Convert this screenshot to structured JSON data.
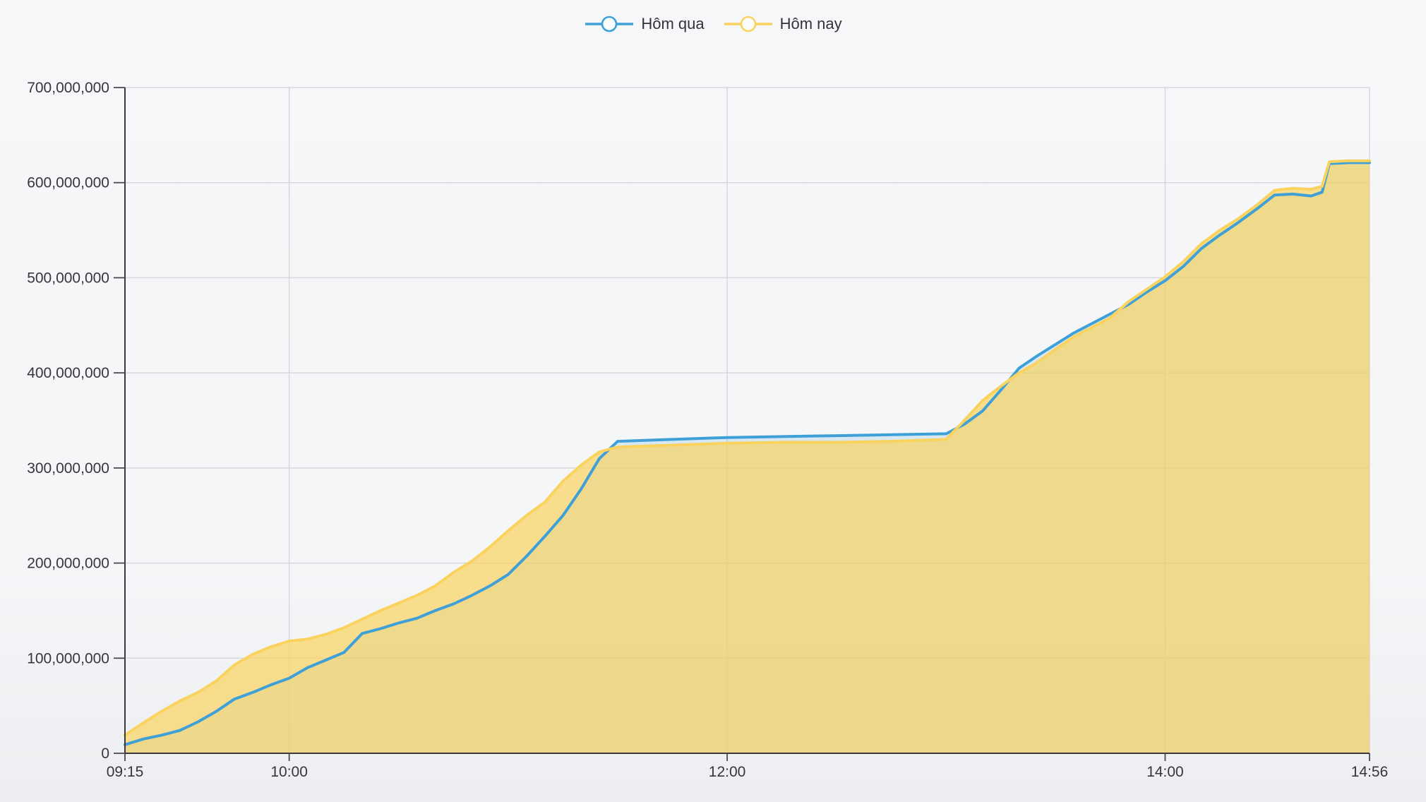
{
  "legend": {
    "position": "top",
    "items": [
      {
        "label": "Hôm qua",
        "color": "#3FA0D7"
      },
      {
        "label": "Hôm nay",
        "color": "#FAD35F"
      }
    ]
  },
  "chart_data": {
    "type": "area",
    "title": "",
    "xlabel": "",
    "ylabel": "",
    "grid": true,
    "legend_position": "top",
    "x_range": [
      "09:15",
      "14:56"
    ],
    "ylim": [
      0,
      700000000
    ],
    "x": [
      "09:15",
      "09:20",
      "09:25",
      "09:30",
      "09:35",
      "09:40",
      "09:45",
      "09:50",
      "09:55",
      "10:00",
      "10:05",
      "10:10",
      "10:15",
      "10:20",
      "10:25",
      "10:30",
      "10:35",
      "10:40",
      "10:45",
      "10:50",
      "10:55",
      "11:00",
      "11:05",
      "11:10",
      "11:15",
      "11:20",
      "11:25",
      "11:30",
      "11:45",
      "12:00",
      "12:15",
      "12:30",
      "12:45",
      "13:00",
      "13:05",
      "13:10",
      "13:15",
      "13:20",
      "13:25",
      "13:30",
      "13:35",
      "13:40",
      "13:45",
      "13:50",
      "13:55",
      "14:00",
      "14:05",
      "14:10",
      "14:15",
      "14:20",
      "14:25",
      "14:30",
      "14:35",
      "14:40",
      "14:43",
      "14:45",
      "14:50",
      "14:56"
    ],
    "series": [
      {
        "name": "Hôm qua",
        "color": "#3FA0D7",
        "fill_color": "rgba(63,160,215,0.16)",
        "values": [
          9000000,
          15000000,
          19000000,
          24000000,
          33000000,
          44000000,
          57000000,
          64000000,
          72000000,
          79000000,
          90000000,
          98000000,
          106000000,
          126000000,
          131000000,
          137000000,
          142000000,
          150000000,
          157000000,
          166000000,
          176000000,
          188000000,
          207000000,
          228000000,
          250000000,
          278000000,
          310000000,
          328000000,
          330000000,
          332000000,
          333000000,
          334000000,
          335000000,
          336000000,
          346000000,
          360000000,
          382000000,
          405000000,
          418000000,
          430000000,
          442000000,
          452000000,
          462000000,
          472000000,
          485000000,
          497000000,
          512000000,
          531000000,
          545000000,
          558000000,
          572000000,
          587000000,
          588000000,
          586000000,
          590000000,
          620000000,
          621000000,
          621000000
        ]
      },
      {
        "name": "Hôm nay",
        "color": "#FAD35F",
        "fill_color": "rgba(250,211,95,0.70)",
        "values": [
          19000000,
          32000000,
          44000000,
          55000000,
          64000000,
          76000000,
          93000000,
          104000000,
          112000000,
          118000000,
          120000000,
          125000000,
          132000000,
          141000000,
          150000000,
          158000000,
          166000000,
          176000000,
          190000000,
          202000000,
          217000000,
          234000000,
          250000000,
          264000000,
          286000000,
          303000000,
          317000000,
          322000000,
          324000000,
          326000000,
          327000000,
          327000000,
          328000000,
          330000000,
          350000000,
          371000000,
          386000000,
          400000000,
          411000000,
          425000000,
          438000000,
          448000000,
          458000000,
          475000000,
          488000000,
          501000000,
          517000000,
          536000000,
          550000000,
          562000000,
          576000000,
          592000000,
          594000000,
          593000000,
          596000000,
          622000000,
          623000000,
          623000000
        ]
      }
    ],
    "y_ticks": [
      {
        "value": 0,
        "label": "0"
      },
      {
        "value": 100000000,
        "label": "100,000,000"
      },
      {
        "value": 200000000,
        "label": "200,000,000"
      },
      {
        "value": 300000000,
        "label": "300,000,000"
      },
      {
        "value": 400000000,
        "label": "400,000,000"
      },
      {
        "value": 500000000,
        "label": "500,000,000"
      },
      {
        "value": 600000000,
        "label": "600,000,000"
      },
      {
        "value": 700000000,
        "label": "700,000,000"
      }
    ],
    "x_ticks": [
      {
        "time": "09:15",
        "label": "09:15",
        "gridline": false
      },
      {
        "time": "10:00",
        "label": "10:00",
        "gridline": true
      },
      {
        "time": "12:00",
        "label": "12:00",
        "gridline": true
      },
      {
        "time": "14:00",
        "label": "14:00",
        "gridline": true
      },
      {
        "time": "14:56",
        "label": "14:56",
        "gridline": true
      }
    ]
  },
  "style": {
    "grid_color": "#D8D8DC",
    "axis_color": "#3A3A3E",
    "tick_color": "#4A4A4E",
    "label_color": "#36363B",
    "legend_marker_fill": "#FBFCFD"
  }
}
